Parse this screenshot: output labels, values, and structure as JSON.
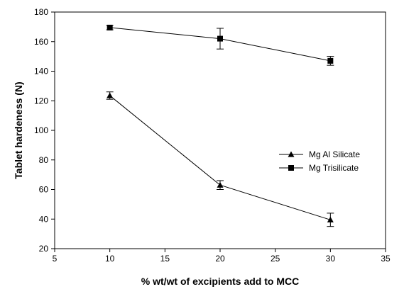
{
  "chart_data": {
    "type": "line",
    "xlabel": "% wt/wt of excipients add to MCC",
    "ylabel": "Tablet hardeness (N)",
    "xlim": [
      5,
      35
    ],
    "ylim": [
      20,
      180
    ],
    "xticks": [
      5,
      10,
      15,
      20,
      25,
      30,
      35
    ],
    "yticks": [
      20,
      40,
      60,
      80,
      100,
      120,
      140,
      160,
      180
    ],
    "grid": false,
    "legend_position": "center-right",
    "series": [
      {
        "name": "Mg Al Silicate",
        "marker": "triangle",
        "color": "#000000",
        "x": [
          10,
          20,
          30
        ],
        "y": [
          123.5,
          63,
          39.5
        ],
        "error": [
          2.5,
          3,
          4.5
        ]
      },
      {
        "name": "Mg Trisilicate",
        "marker": "square",
        "color": "#000000",
        "x": [
          10,
          20,
          30
        ],
        "y": [
          169.5,
          162,
          147
        ],
        "error": [
          1.5,
          7,
          3
        ]
      }
    ]
  }
}
